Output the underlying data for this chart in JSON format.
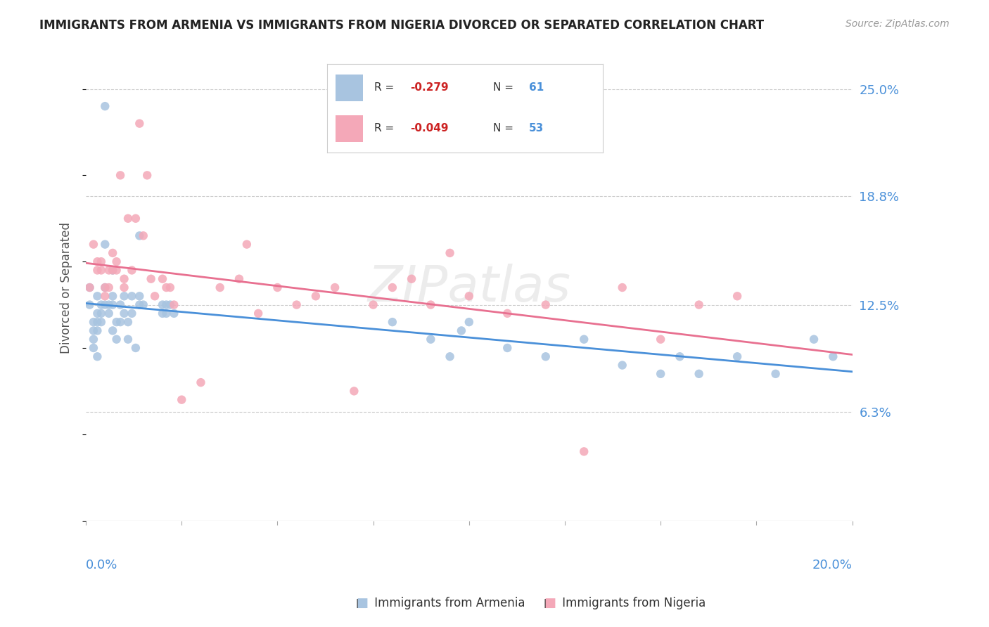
{
  "title": "IMMIGRANTS FROM ARMENIA VS IMMIGRANTS FROM NIGERIA DIVORCED OR SEPARATED CORRELATION CHART",
  "source": "Source: ZipAtlas.com",
  "ylabel": "Divorced or Separated",
  "ytick_labels": [
    "25.0%",
    "18.8%",
    "12.5%",
    "6.3%"
  ],
  "ytick_values": [
    0.25,
    0.188,
    0.125,
    0.063
  ],
  "xlim": [
    0.0,
    0.2
  ],
  "ylim": [
    0.0,
    0.27
  ],
  "armenia_color": "#a8c4e0",
  "nigeria_color": "#f4a8b8",
  "armenia_line_color": "#4a90d9",
  "nigeria_line_color": "#e87090",
  "watermark": "ZIPatlas",
  "armenia_x": [
    0.001,
    0.001,
    0.002,
    0.002,
    0.002,
    0.002,
    0.003,
    0.003,
    0.003,
    0.003,
    0.003,
    0.004,
    0.004,
    0.004,
    0.005,
    0.005,
    0.005,
    0.005,
    0.006,
    0.006,
    0.007,
    0.007,
    0.007,
    0.007,
    0.008,
    0.008,
    0.009,
    0.009,
    0.01,
    0.01,
    0.011,
    0.011,
    0.012,
    0.012,
    0.013,
    0.014,
    0.014,
    0.014,
    0.015,
    0.02,
    0.02,
    0.021,
    0.021,
    0.022,
    0.023,
    0.08,
    0.09,
    0.095,
    0.098,
    0.1,
    0.11,
    0.12,
    0.13,
    0.14,
    0.15,
    0.155,
    0.16,
    0.17,
    0.18,
    0.19,
    0.195
  ],
  "armenia_y": [
    0.135,
    0.125,
    0.115,
    0.11,
    0.105,
    0.1,
    0.13,
    0.12,
    0.115,
    0.11,
    0.095,
    0.125,
    0.12,
    0.115,
    0.24,
    0.16,
    0.135,
    0.125,
    0.125,
    0.12,
    0.145,
    0.13,
    0.125,
    0.11,
    0.115,
    0.105,
    0.125,
    0.115,
    0.13,
    0.12,
    0.115,
    0.105,
    0.13,
    0.12,
    0.1,
    0.165,
    0.13,
    0.125,
    0.125,
    0.125,
    0.12,
    0.125,
    0.12,
    0.125,
    0.12,
    0.115,
    0.105,
    0.095,
    0.11,
    0.115,
    0.1,
    0.095,
    0.105,
    0.09,
    0.085,
    0.095,
    0.085,
    0.095,
    0.085,
    0.105,
    0.095
  ],
  "nigeria_x": [
    0.001,
    0.002,
    0.003,
    0.003,
    0.004,
    0.004,
    0.005,
    0.005,
    0.006,
    0.006,
    0.007,
    0.007,
    0.008,
    0.008,
    0.009,
    0.01,
    0.01,
    0.011,
    0.012,
    0.013,
    0.014,
    0.015,
    0.016,
    0.017,
    0.018,
    0.02,
    0.021,
    0.022,
    0.023,
    0.025,
    0.03,
    0.035,
    0.04,
    0.042,
    0.045,
    0.05,
    0.055,
    0.06,
    0.065,
    0.07,
    0.075,
    0.08,
    0.085,
    0.09,
    0.095,
    0.1,
    0.11,
    0.12,
    0.13,
    0.14,
    0.15,
    0.16,
    0.17
  ],
  "nigeria_y": [
    0.135,
    0.16,
    0.15,
    0.145,
    0.15,
    0.145,
    0.135,
    0.13,
    0.145,
    0.135,
    0.155,
    0.145,
    0.15,
    0.145,
    0.2,
    0.14,
    0.135,
    0.175,
    0.145,
    0.175,
    0.23,
    0.165,
    0.2,
    0.14,
    0.13,
    0.14,
    0.135,
    0.135,
    0.125,
    0.07,
    0.08,
    0.135,
    0.14,
    0.16,
    0.12,
    0.135,
    0.125,
    0.13,
    0.135,
    0.075,
    0.125,
    0.135,
    0.14,
    0.125,
    0.155,
    0.13,
    0.12,
    0.125,
    0.04,
    0.135,
    0.105,
    0.125,
    0.13
  ],
  "legend_r1": "-0.279",
  "legend_n1": "61",
  "legend_r2": "-0.049",
  "legend_n2": "53",
  "bottom_label1": "Immigrants from Armenia",
  "bottom_label2": "Immigrants from Nigeria"
}
